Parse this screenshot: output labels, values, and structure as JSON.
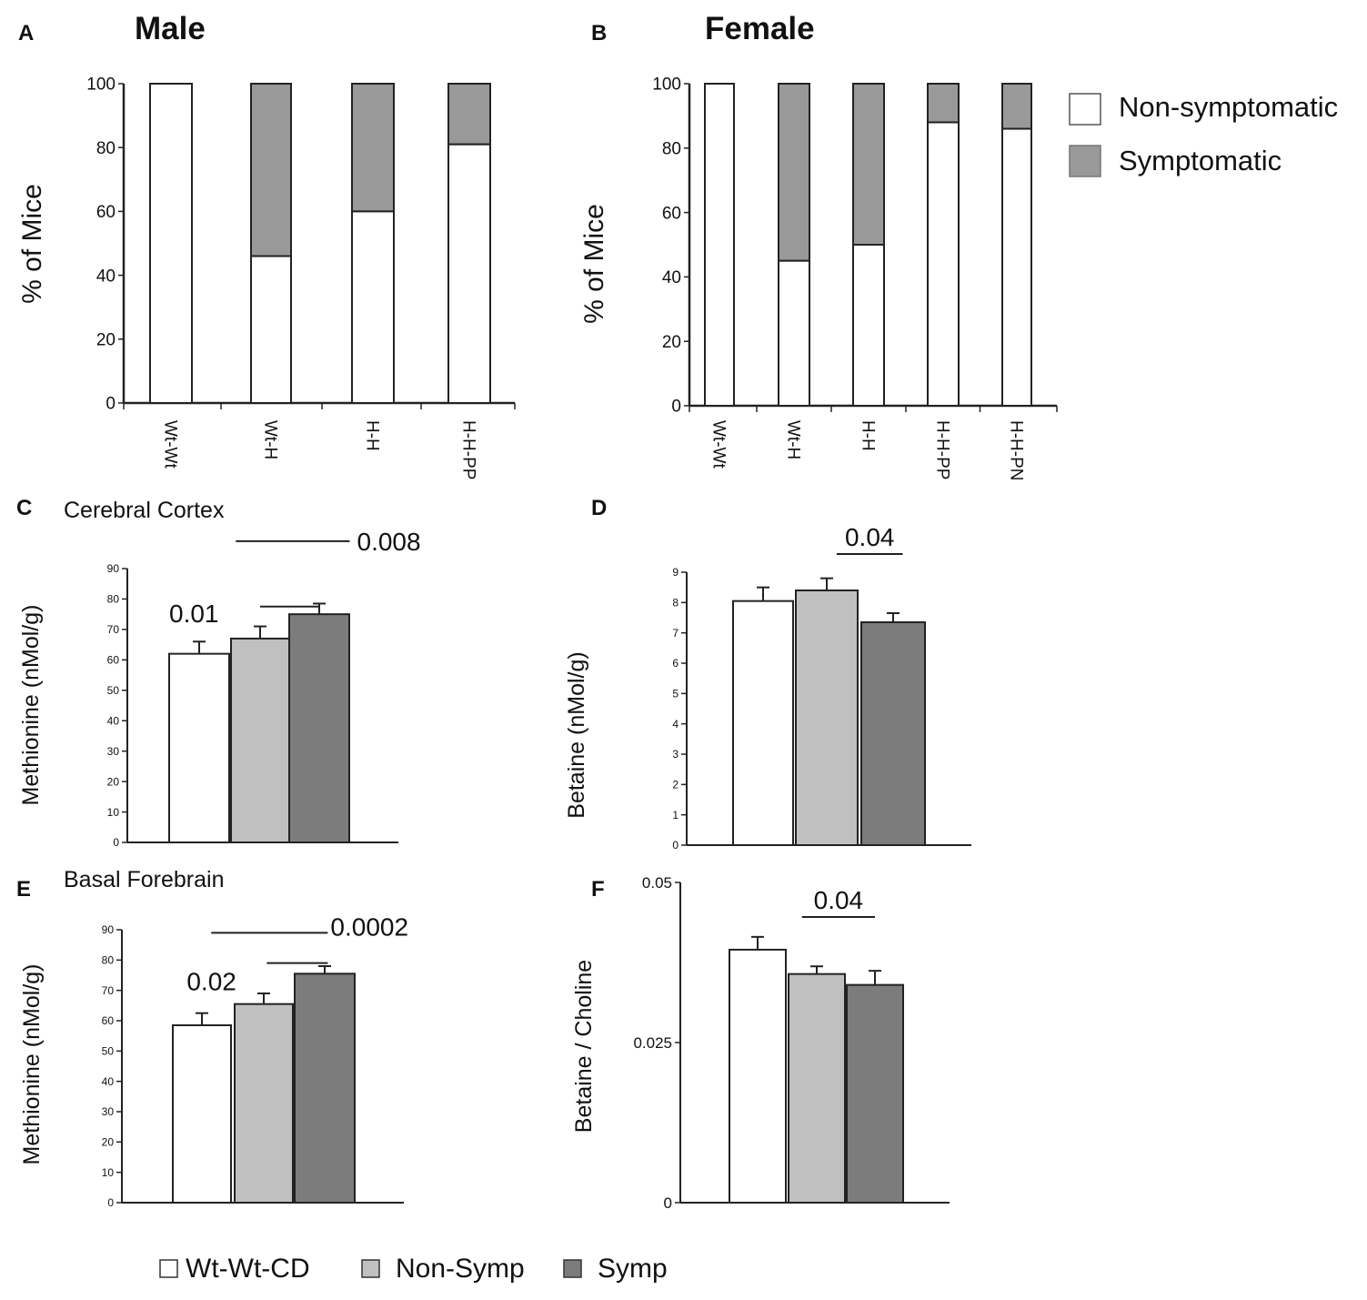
{
  "chart_data": [
    {
      "id": "A",
      "type": "bar",
      "stacked": true,
      "panel_label": "A",
      "title": "Male",
      "ylabel": "% of Mice",
      "ylim": [
        0,
        100
      ],
      "yticks": [
        "0",
        "20",
        "40",
        "60",
        "80",
        "100"
      ],
      "ytick_values": [
        0,
        20,
        40,
        60,
        80,
        100
      ],
      "categories": [
        "Wt-Wt",
        "Wt-H",
        "H-H",
        "H-H-PP"
      ],
      "series": [
        {
          "name": "Non-symptomatic",
          "values": [
            100,
            46,
            60,
            81
          ]
        },
        {
          "name": "Symptomatic",
          "values": [
            0,
            54,
            40,
            19
          ]
        }
      ]
    },
    {
      "id": "B",
      "type": "bar",
      "stacked": true,
      "panel_label": "B",
      "title": "Female",
      "ylabel": "% of Mice",
      "ylim": [
        0,
        100
      ],
      "yticks": [
        "0",
        "20",
        "40",
        "60",
        "80",
        "100"
      ],
      "ytick_values": [
        0,
        20,
        40,
        60,
        80,
        100
      ],
      "categories": [
        "Wt-Wt",
        "Wt-H",
        "H-H",
        "H-H-PP",
        "H-H-PN"
      ],
      "series": [
        {
          "name": "Non-symptomatic",
          "values": [
            100,
            45,
            50,
            88,
            86
          ]
        },
        {
          "name": "Symptomatic",
          "values": [
            0,
            55,
            50,
            12,
            14
          ]
        }
      ]
    },
    {
      "id": "C",
      "type": "bar",
      "panel_label": "C",
      "title": "Cerebral  Cortex",
      "ylabel": "Methionine  (nMol/g)",
      "ylim": [
        0,
        90
      ],
      "yticks": [
        "0",
        "10",
        "20",
        "30",
        "40",
        "50",
        "60",
        "70",
        "80",
        "90"
      ],
      "ytick_values": [
        0,
        10,
        20,
        30,
        40,
        50,
        60,
        70,
        80,
        90
      ],
      "categories": [
        "Wt-Wt-CD",
        "Non-Symp",
        "Symp"
      ],
      "values": [
        62,
        67,
        75
      ],
      "errors": [
        4,
        4,
        3.5
      ],
      "annotations": [
        {
          "text": "0.01",
          "from": 1,
          "to": 2,
          "level": 77.5
        },
        {
          "text": "0.008",
          "from": 0.6,
          "to": 2.5,
          "level": 99
        }
      ]
    },
    {
      "id": "D",
      "type": "bar",
      "panel_label": "D",
      "title": "",
      "ylabel": "Betaine  (nMol/g)",
      "ylim": [
        0,
        9
      ],
      "yticks": [
        "0",
        "1",
        "2",
        "3",
        "4",
        "5",
        "6",
        "7",
        "8",
        "9"
      ],
      "ytick_values": [
        0,
        1,
        2,
        3,
        4,
        5,
        6,
        7,
        8,
        9
      ],
      "categories": [
        "Wt-Wt-CD",
        "Non-Symp",
        "Symp"
      ],
      "values": [
        8.05,
        8.4,
        7.35
      ],
      "errors": [
        0.45,
        0.4,
        0.3
      ],
      "annotations": [
        {
          "text": "0.04",
          "from": 1.15,
          "to": 2.15,
          "level": 9.6
        }
      ]
    },
    {
      "id": "E",
      "type": "bar",
      "panel_label": "E",
      "title": "Basal Forebrain",
      "ylabel": "Methionine  (nMol/g)",
      "ylim": [
        0,
        90
      ],
      "yticks": [
        "0",
        "10",
        "20",
        "30",
        "40",
        "50",
        "60",
        "70",
        "80",
        "90"
      ],
      "ytick_values": [
        0,
        10,
        20,
        30,
        40,
        50,
        60,
        70,
        80,
        90
      ],
      "categories": [
        "Wt-Wt-CD",
        "Non-Symp",
        "Symp"
      ],
      "values": [
        58.5,
        65.5,
        75.5
      ],
      "errors": [
        4,
        3.5,
        2.5
      ],
      "annotations": [
        {
          "text": "0.02",
          "from": 1.05,
          "to": 2.05,
          "level": 79
        },
        {
          "text": "0.0002",
          "from": 0.15,
          "to": 2.05,
          "level": 89
        }
      ]
    },
    {
      "id": "F",
      "type": "bar",
      "panel_label": "F",
      "title": "",
      "ylabel": "Betaine / Choline",
      "ylim": [
        0,
        0.05
      ],
      "yticks": [
        "0",
        "0.025",
        "0.05"
      ],
      "ytick_values": [
        0,
        0.025,
        0.05
      ],
      "categories": [
        "Wt-Wt-CD",
        "Non-Symp",
        "Symp"
      ],
      "values": [
        0.0395,
        0.0357,
        0.034
      ],
      "errors": [
        0.002,
        0.0012,
        0.0022
      ],
      "annotations": [
        {
          "text": "0.04",
          "from": 0.75,
          "to": 2.0,
          "level": 0.0446
        }
      ]
    }
  ],
  "legends": {
    "top": {
      "items": [
        {
          "label": "Non-symptomatic",
          "color": "#ffffff"
        },
        {
          "label": "Symptomatic",
          "color": "#999999"
        }
      ]
    },
    "bottom": {
      "items": [
        {
          "label": "Wt-Wt-CD",
          "color": "#ffffff"
        },
        {
          "label": "Non-Symp",
          "color": "#c0c0c0"
        },
        {
          "label": "Symp",
          "color": "#7c7c7c"
        }
      ]
    }
  },
  "colors": {
    "non_symptomatic": "#ffffff",
    "symptomatic": "#999999",
    "wt": "#ffffff",
    "non_symp": "#c0c0c0",
    "symp": "#7c7c7c",
    "axis": "#222222"
  }
}
